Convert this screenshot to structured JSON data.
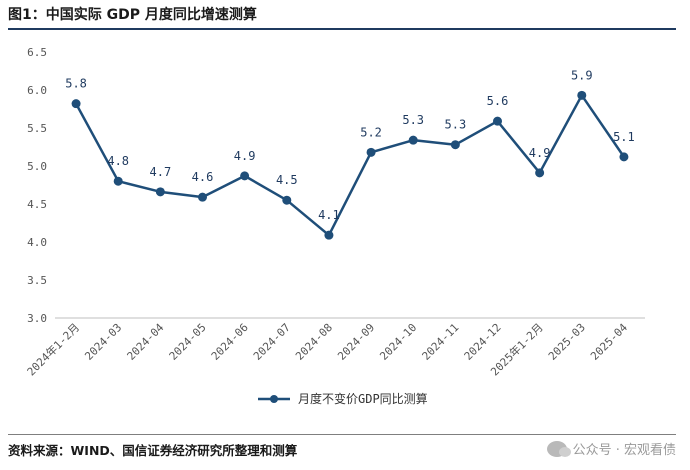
{
  "figure": {
    "title": "图1：中国实际 GDP 月度同比增速测算",
    "source": "资料来源：WIND、国信证券经济研究所整理和测算",
    "watermark": "公众号 · 宏观看债"
  },
  "chart_data": {
    "type": "line",
    "categories": [
      "2024年1-2月",
      "2024-03",
      "2024-04",
      "2024-05",
      "2024-06",
      "2024-07",
      "2024-08",
      "2024-09",
      "2024-10",
      "2024-11",
      "2024-12",
      "2025年1-2月",
      "2025-03",
      "2025-04"
    ],
    "series": [
      {
        "name": "月度不变价GDP同比测算",
        "values": [
          5.82,
          4.8,
          4.66,
          4.59,
          4.87,
          4.55,
          4.09,
          5.18,
          5.34,
          5.28,
          5.59,
          4.91,
          5.93,
          5.12
        ],
        "labels": [
          "5.8",
          "4.8",
          "4.7",
          "4.6",
          "4.9",
          "4.5",
          "4.1",
          "5.2",
          "5.3",
          "5.3",
          "5.6",
          "4.9",
          "5.9",
          "5.1"
        ],
        "color": "#1f4e79"
      }
    ],
    "ylim": [
      3.0,
      6.5
    ],
    "yticks": [
      "3.0",
      "3.5",
      "4.0",
      "4.5",
      "5.0",
      "5.5",
      "6.0",
      "6.5"
    ],
    "grid": false,
    "legend": "bottom-center"
  }
}
